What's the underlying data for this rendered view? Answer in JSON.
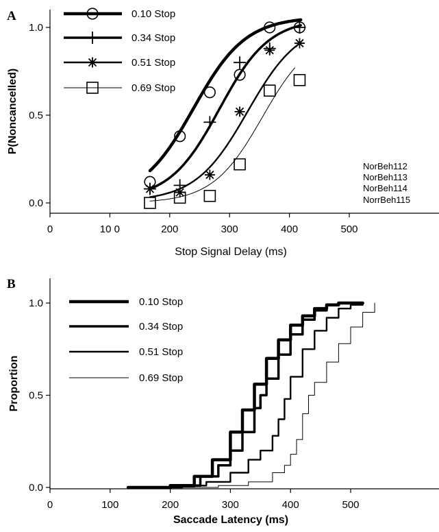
{
  "chart_data": [
    {
      "panel": "A",
      "type": "line",
      "xlabel": "Stop Signal Delay (ms)",
      "ylabel": "P(Noncancelled)",
      "xlim": [
        0,
        550
      ],
      "ylim": [
        -0.05,
        1.1
      ],
      "x_ticks": [
        0,
        100,
        200,
        300,
        400,
        500
      ],
      "x_tick_labels": [
        "0",
        "10 0",
        "200",
        "300",
        "400",
        "500"
      ],
      "y_ticks": [
        0,
        0.5,
        1
      ],
      "y_tick_labels": [
        "0.0",
        "0.5",
        "1.0"
      ],
      "legend_placement": "top-left",
      "session_labels": [
        "NorBeh112",
        "NorBeh113",
        "NorBeh114",
        "NorrBeh115"
      ],
      "series": [
        {
          "name": "0.10 Stop",
          "marker": "circle",
          "line_weight": 4.5,
          "x": [
            167,
            217,
            267,
            317,
            367,
            417
          ],
          "y": [
            0.12,
            0.38,
            0.63,
            0.73,
            1.0,
            1.0
          ],
          "fit": {
            "x0": 240,
            "k": 0.023,
            "top": 1.06,
            "bottom": 0.02,
            "x_start": 167,
            "x_end": 420
          }
        },
        {
          "name": "0.34 Stop",
          "marker": "plus",
          "line_weight": 3.5,
          "x": [
            167,
            217,
            267,
            317,
            367,
            417
          ],
          "y": [
            0.08,
            0.1,
            0.46,
            0.8,
            0.88,
            1.0
          ],
          "fit": {
            "x0": 283,
            "k": 0.024,
            "top": 1.05,
            "bottom": 0.02,
            "x_start": 167,
            "x_end": 420
          }
        },
        {
          "name": "0.51 Stop",
          "marker": "asterisk",
          "line_weight": 2.4,
          "x": [
            167,
            217,
            267,
            317,
            367,
            417
          ],
          "y": [
            0.08,
            0.06,
            0.16,
            0.52,
            0.87,
            0.91
          ],
          "fit": {
            "x0": 330,
            "k": 0.023,
            "top": 1.03,
            "bottom": 0.01,
            "x_start": 167,
            "x_end": 420
          }
        },
        {
          "name": "0.69 Stop",
          "marker": "square",
          "line_weight": 1.0,
          "x": [
            167,
            217,
            267,
            317,
            367,
            417
          ],
          "y": [
            0.0,
            0.03,
            0.04,
            0.22,
            0.64,
            0.7
          ],
          "fit": {
            "x0": 355,
            "k": 0.024,
            "top": 0.98,
            "bottom": 0.0,
            "x_start": 167,
            "x_end": 410
          }
        }
      ]
    },
    {
      "panel": "B",
      "type": "line",
      "xlabel": "Saccade Latency (ms)",
      "ylabel": "Proportion",
      "xlim": [
        0,
        550
      ],
      "ylim": [
        0,
        1.08
      ],
      "x_ticks": [
        0,
        100,
        200,
        300,
        400,
        500
      ],
      "x_tick_labels": [
        "0",
        "100",
        "200",
        "300",
        "400",
        "500"
      ],
      "y_ticks": [
        0,
        0.5,
        1
      ],
      "y_tick_labels": [
        "0.0",
        "0.5",
        "1.0"
      ],
      "legend_placement": "top-left",
      "series": [
        {
          "name": "0.10 Stop",
          "line_weight": 4.5,
          "x": [
            130,
            200,
            240,
            270,
            300,
            320,
            340,
            360,
            380,
            400,
            420,
            440,
            460,
            480,
            500,
            520
          ],
          "y": [
            0.0,
            0.01,
            0.06,
            0.15,
            0.3,
            0.42,
            0.56,
            0.7,
            0.8,
            0.88,
            0.93,
            0.97,
            0.99,
            1.0,
            1.0,
            1.0
          ]
        },
        {
          "name": "0.34 Stop",
          "line_weight": 3.5,
          "x": [
            140,
            200,
            250,
            280,
            300,
            320,
            340,
            350,
            360,
            380,
            400,
            420,
            440,
            460,
            480,
            500,
            520
          ],
          "y": [
            0.0,
            0.01,
            0.06,
            0.12,
            0.2,
            0.3,
            0.43,
            0.5,
            0.59,
            0.72,
            0.83,
            0.91,
            0.96,
            0.99,
            1.0,
            1.0,
            1.0
          ]
        },
        {
          "name": "0.51 Stop",
          "line_weight": 2.4,
          "x": [
            160,
            220,
            260,
            300,
            330,
            350,
            370,
            380,
            390,
            400,
            420,
            440,
            460,
            480,
            500,
            520
          ],
          "y": [
            0.0,
            0.01,
            0.03,
            0.08,
            0.15,
            0.2,
            0.28,
            0.37,
            0.48,
            0.6,
            0.75,
            0.85,
            0.92,
            0.97,
            0.99,
            1.0
          ]
        },
        {
          "name": "0.69 Stop",
          "line_weight": 1.0,
          "x": [
            200,
            280,
            330,
            370,
            390,
            400,
            410,
            420,
            430,
            440,
            460,
            480,
            500,
            520,
            540
          ],
          "y": [
            0.0,
            0.01,
            0.03,
            0.08,
            0.12,
            0.18,
            0.26,
            0.4,
            0.5,
            0.57,
            0.68,
            0.78,
            0.87,
            0.95,
            1.0
          ]
        }
      ]
    }
  ]
}
